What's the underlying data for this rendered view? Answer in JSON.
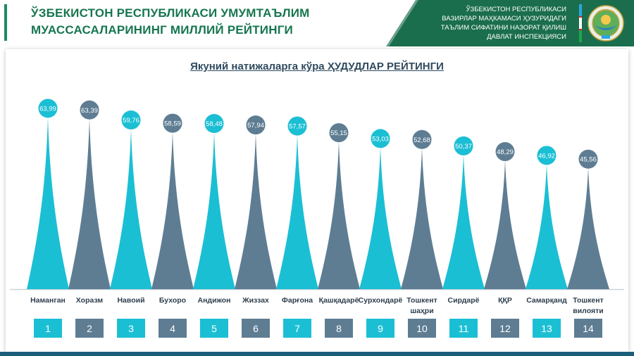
{
  "header": {
    "title_line1": "ЎЗБЕКИСТОН РЕСПУБЛИКАСИ УМУМТАЪЛИМ",
    "title_line2": "МУАССАСАЛАРИНИНГ МИЛЛИЙ РЕЙТИНГИ",
    "ministry_lines": [
      "ЎЗБЕКИСТОН РЕСПУБЛИКАСИ",
      "ВАЗИРЛАР МАҲКАМАСИ ҲУЗУРИДАГИ",
      "ТАЪЛИМ СИФАТИНИ НАЗОРАТ ҚИЛИШ",
      "ДАВЛАТ ИНСПЕКЦИЯСИ"
    ],
    "emblem_icon": "state-emblem-icon",
    "colors": {
      "title": "#16764f",
      "panel": "#1b6e4d",
      "accent": "#1b8a63"
    }
  },
  "chart_data": {
    "type": "bar",
    "title": "Якуний натижаларга кўра ҲУДУДЛАР РЕЙТИНГИ",
    "categories": [
      "Наманган",
      "Хоразм",
      "Навоий",
      "Бухоро",
      "Андижон",
      "Жиззах",
      "Фарғона",
      "Қашқадарё",
      "Сурхондарё",
      "Тошкент шаҳри",
      "Сирдарё",
      "ҚҚР",
      "Самарқанд",
      "Тошкент вилояти"
    ],
    "category_lines": [
      [
        "Наманган"
      ],
      [
        "Хоразм"
      ],
      [
        "Навоий"
      ],
      [
        "Бухоро"
      ],
      [
        "Андижон"
      ],
      [
        "Жиззах"
      ],
      [
        "Фарғона"
      ],
      [
        "Қашқадарё"
      ],
      [
        "Сурхондарё"
      ],
      [
        "Тошкент",
        "шаҳри"
      ],
      [
        "Сирдарё"
      ],
      [
        "ҚҚР"
      ],
      [
        "Самарқанд"
      ],
      [
        "Тошкент",
        "вилояти"
      ]
    ],
    "values": [
      63.99,
      63.39,
      59.76,
      58.59,
      58.48,
      57.94,
      57.57,
      55.15,
      53.03,
      52.68,
      50.37,
      48.29,
      46.92,
      45.56
    ],
    "value_labels": [
      "63,99",
      "63,39",
      "59,76",
      "58,59",
      "58,48",
      "57,94",
      "57,57",
      "55,15",
      "53,03",
      "52,68",
      "50,37",
      "48,29",
      "46,92",
      "45,56"
    ],
    "ranks": [
      "1",
      "2",
      "3",
      "4",
      "5",
      "6",
      "7",
      "8",
      "9",
      "10",
      "11",
      "12",
      "13",
      "14"
    ],
    "ylim": [
      40,
      65
    ],
    "grid": false,
    "colors": {
      "odd": "#1bbfd4",
      "even": "#5e7d93"
    }
  }
}
